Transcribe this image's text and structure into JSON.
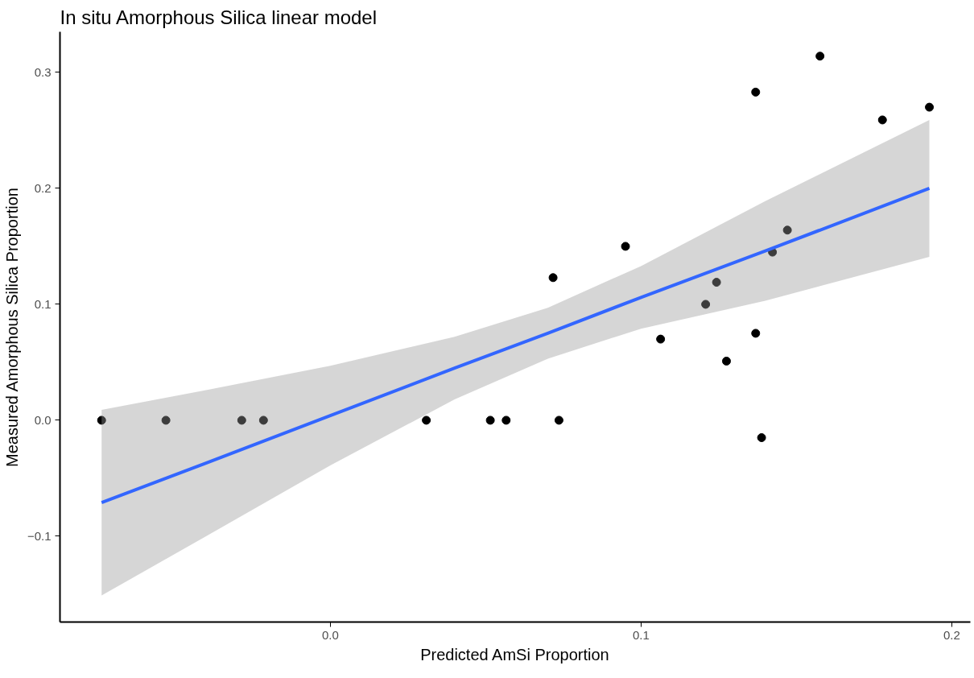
{
  "chart_data": {
    "type": "scatter",
    "title": "In situ Amorphous Silica linear model",
    "xlabel": "Predicted AmSi Proportion",
    "ylabel": "Measured Amorphous Silica Proportion",
    "xlim": [
      -0.087,
      0.206
    ],
    "ylim": [
      -0.174,
      0.335
    ],
    "xticks": [
      {
        "value": 0.0,
        "label": "0.0"
      },
      0.1,
      0.2
    ],
    "yticks": [
      {
        "value": -0.1,
        "label": "−0.1"
      },
      {
        "value": 0.0,
        "label": "0.0"
      },
      0.1,
      0.2,
      0.3
    ],
    "grid": false,
    "series": [
      {
        "marker": "circle",
        "color": "#000000",
        "x": [
          -0.0736,
          -0.0529,
          -0.0285,
          -0.0215,
          0.0309,
          0.0515,
          0.0566,
          0.0736,
          0.0717,
          0.095,
          0.1063,
          0.1208,
          0.1243,
          0.1275,
          0.1369,
          0.1369,
          0.1388,
          0.1423,
          0.1471,
          0.1576,
          0.1777,
          0.1928
        ],
        "values": [
          0,
          0,
          0,
          0,
          0,
          0,
          0,
          0,
          0.123,
          0.15,
          0.07,
          0.1,
          0.119,
          0.051,
          0.283,
          0.075,
          -0.015,
          0.145,
          0.164,
          0.314,
          0.259,
          0.27
        ]
      },
      {
        "type": "line",
        "marker": "none",
        "color": "#3366ff",
        "line_style": "solid",
        "x": [
          -0.0736,
          -0.04,
          0,
          0.04,
          0.07,
          0.1,
          0.14,
          0.1928
        ],
        "values": [
          -0.071,
          -0.037,
          0.004,
          0.045,
          0.075,
          0.106,
          0.146,
          0.2
        ],
        "lower": [
          -0.151,
          -0.1,
          -0.039,
          0.018,
          0.053,
          0.079,
          0.103,
          0.141
        ],
        "upper": [
          0.009,
          0.026,
          0.047,
          0.072,
          0.097,
          0.133,
          0.189,
          0.259
        ]
      }
    ]
  }
}
